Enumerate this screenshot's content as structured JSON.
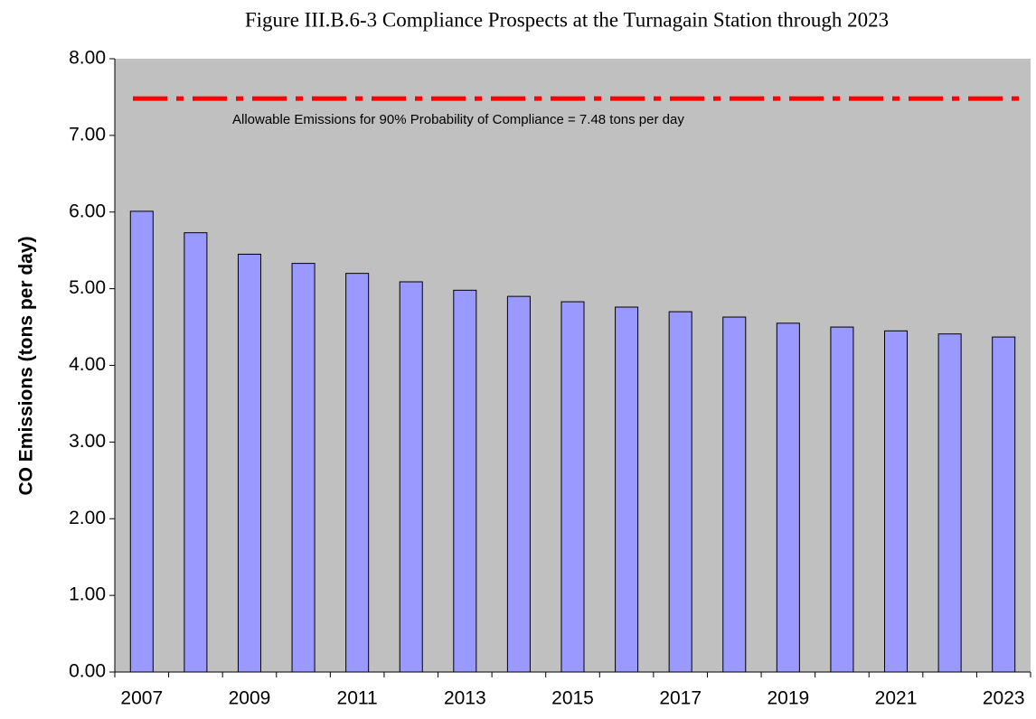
{
  "chart_data": {
    "type": "bar",
    "title": "Figure III.B.6-3  Compliance Prospects at the Turnagain Station through 2023",
    "y_label": "CO Emissions (tons per day)",
    "categories": [
      "2007",
      null,
      "2009",
      null,
      "2011",
      null,
      "2013",
      null,
      "2015",
      null,
      "2017",
      null,
      "2019",
      null,
      "2021",
      null,
      "2023"
    ],
    "values": [
      6.01,
      5.73,
      5.45,
      5.33,
      5.2,
      5.09,
      4.98,
      4.9,
      4.83,
      4.76,
      4.7,
      4.63,
      4.55,
      4.5,
      4.45,
      4.41,
      4.37
    ],
    "color": "#9999ff",
    "background": "#c0c0c0",
    "ylim": [
      0,
      8
    ],
    "yticks": [
      {
        "value": 0,
        "label": "0.00"
      },
      {
        "value": 1,
        "label": "1.00"
      },
      {
        "value": 2,
        "label": "2.00"
      },
      {
        "value": 3,
        "label": "3.00"
      },
      {
        "value": 4,
        "label": "4.00"
      },
      {
        "value": 5,
        "label": "5.00"
      },
      {
        "value": 6,
        "label": "6.00"
      },
      {
        "value": 7,
        "label": "7.00"
      },
      {
        "value": 8,
        "label": "8.00"
      }
    ],
    "grid": false,
    "reference_line": {
      "value": 7.48,
      "color": "#ff0000",
      "label": "Allowable Emissions for 90% Probability of Compliance = 7.48 tons per day"
    }
  }
}
